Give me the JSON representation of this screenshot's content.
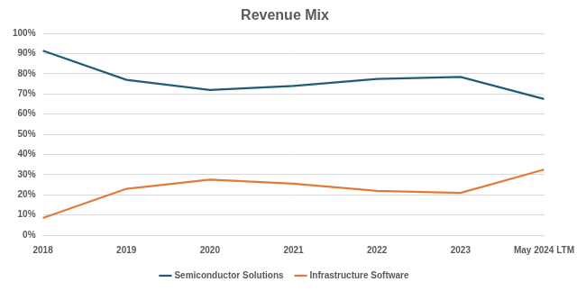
{
  "chart_data": {
    "type": "line",
    "title": "Revenue Mix",
    "categories": [
      "2018",
      "2019",
      "2020",
      "2021",
      "2022",
      "2023",
      "May 2024 LTM"
    ],
    "series": [
      {
        "name": "Semiconductor Solutions",
        "color": "#1f5c78",
        "values": [
          91.5,
          77,
          72,
          74,
          77.5,
          78.5,
          67.5
        ]
      },
      {
        "name": "Infrastructure Software",
        "color": "#e07b39",
        "values": [
          8.5,
          23,
          27.5,
          25.5,
          22,
          21,
          32.5
        ]
      }
    ],
    "ylim": [
      0,
      100
    ],
    "yticks": [
      {
        "value": 0,
        "label": "0%"
      },
      {
        "value": 10,
        "label": "10%"
      },
      {
        "value": 20,
        "label": "20%"
      },
      {
        "value": 30,
        "label": "30%"
      },
      {
        "value": 40,
        "label": "40%"
      },
      {
        "value": 50,
        "label": "50%"
      },
      {
        "value": 60,
        "label": "60%"
      },
      {
        "value": 70,
        "label": "70%"
      },
      {
        "value": 80,
        "label": "80%"
      },
      {
        "value": 90,
        "label": "90%"
      },
      {
        "value": 100,
        "label": "100%"
      }
    ],
    "grid": true,
    "legend": "bottom"
  }
}
